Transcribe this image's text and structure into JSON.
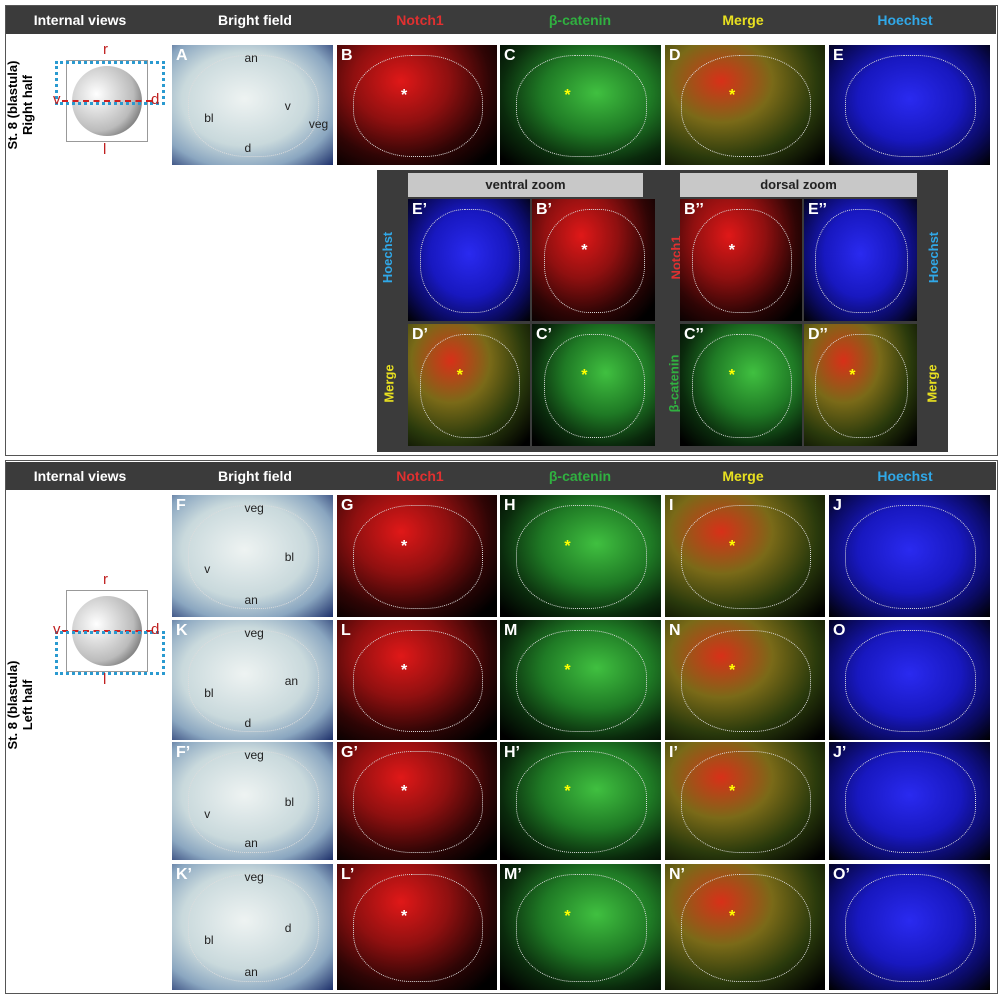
{
  "header": {
    "internal_views": "Internal views",
    "columns": [
      {
        "label": "Bright field",
        "color": "#ffffff"
      },
      {
        "label": "Notch1",
        "color": "#e03030"
      },
      {
        "label": "β-catenin",
        "color": "#30b040"
      },
      {
        "label": "Merge",
        "color": "#e8e020"
      },
      {
        "label": "Hoechst",
        "color": "#30a8e8"
      }
    ]
  },
  "top": {
    "stage_label": "St. 8 (blastula)",
    "half_label": "Right half",
    "diagram_labels": {
      "r": "r",
      "v": "v",
      "d": "d",
      "l": "l"
    },
    "panels": [
      {
        "label": "A",
        "channel": "bf",
        "annotations": [
          "an",
          "bl",
          "v",
          "d",
          "veg"
        ]
      },
      {
        "label": "B",
        "channel": "red"
      },
      {
        "label": "C",
        "channel": "green"
      },
      {
        "label": "D",
        "channel": "merge"
      },
      {
        "label": "E",
        "channel": "blue"
      }
    ],
    "zoom": {
      "ventral_title": "ventral zoom",
      "dorsal_title": "dorsal zoom",
      "panels": [
        {
          "label": "E’",
          "channel": "blue"
        },
        {
          "label": "B’",
          "channel": "red"
        },
        {
          "label": "B’’",
          "channel": "red"
        },
        {
          "label": "E’’",
          "channel": "blue"
        },
        {
          "label": "D’",
          "channel": "merge"
        },
        {
          "label": "C’",
          "channel": "green"
        },
        {
          "label": "C’’",
          "channel": "green"
        },
        {
          "label": "D’’",
          "channel": "merge"
        }
      ],
      "side_labels": {
        "hoechst_left": "Hoechst",
        "merge_left": "Merge",
        "notch_right": "Notch1",
        "catenin_right": "β-catenin",
        "hoechst_right": "Hoechst",
        "merge_right": "Merge"
      }
    }
  },
  "bottom": {
    "stage_label": "St. 8 (blastula)",
    "half_label": "Left half",
    "diagram_labels": {
      "r": "r",
      "v": "v",
      "d": "d",
      "l": "l"
    },
    "panels": [
      {
        "label": "F",
        "channel": "bf",
        "annotations": [
          "veg",
          "v",
          "bl",
          "an"
        ]
      },
      {
        "label": "G",
        "channel": "red"
      },
      {
        "label": "H",
        "channel": "green"
      },
      {
        "label": "I",
        "channel": "merge"
      },
      {
        "label": "J",
        "channel": "blue"
      },
      {
        "label": "K",
        "channel": "bf",
        "annotations": [
          "veg",
          "bl",
          "an",
          "d"
        ]
      },
      {
        "label": "L",
        "channel": "red"
      },
      {
        "label": "M",
        "channel": "green"
      },
      {
        "label": "N",
        "channel": "merge"
      },
      {
        "label": "O",
        "channel": "blue"
      },
      {
        "label": "F’",
        "channel": "bf",
        "annotations": [
          "veg",
          "v",
          "bl",
          "an"
        ]
      },
      {
        "label": "G’",
        "channel": "red"
      },
      {
        "label": "H’",
        "channel": "green"
      },
      {
        "label": "I’",
        "channel": "merge"
      },
      {
        "label": "J’",
        "channel": "blue"
      },
      {
        "label": "K’",
        "channel": "bf",
        "annotations": [
          "veg",
          "bl",
          "d",
          "an"
        ]
      },
      {
        "label": "L’",
        "channel": "red"
      },
      {
        "label": "M’",
        "channel": "green"
      },
      {
        "label": "N’",
        "channel": "merge"
      },
      {
        "label": "O’",
        "channel": "blue"
      }
    ]
  },
  "star": "*"
}
